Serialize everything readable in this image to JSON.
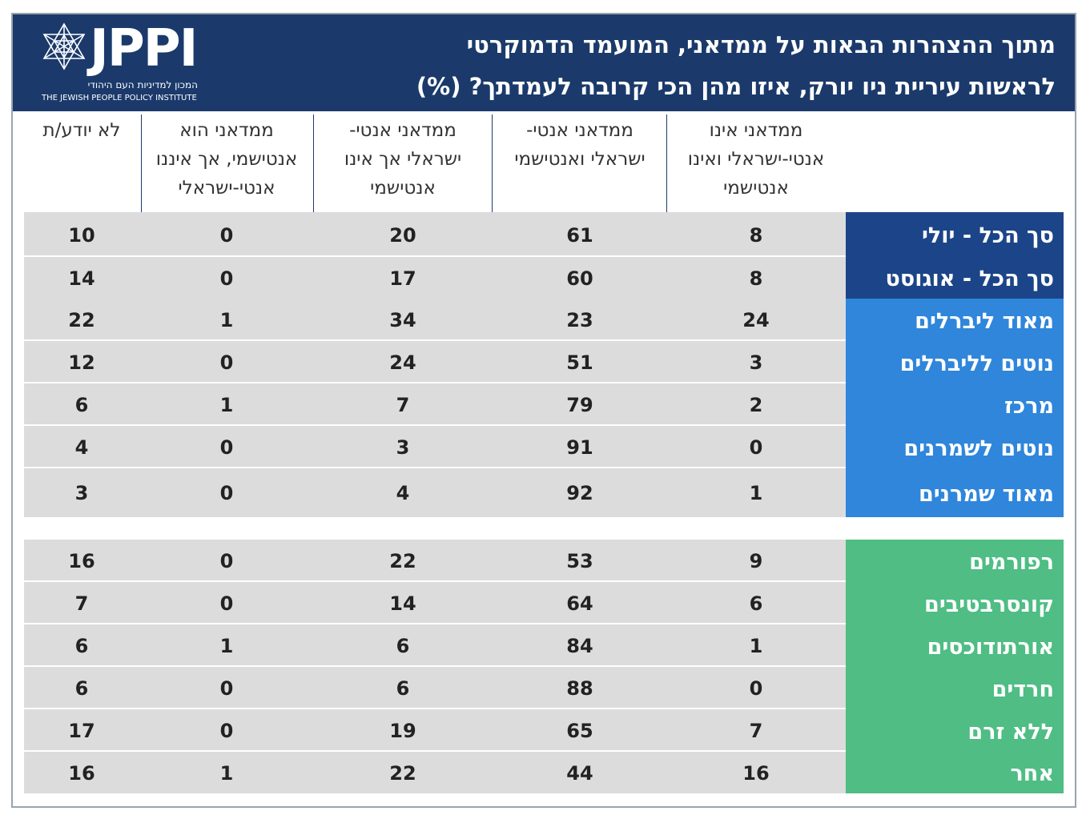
{
  "logo": {
    "name": "JPPI",
    "hebrew": "המכון למדיניות העם היהודי",
    "english": "THE JEWISH PEOPLE POLICY INSTITUTE"
  },
  "title": {
    "line1": "מתוך ההצהרות הבאות על ממדאני, המועמד הדמוקרטי",
    "line2": "לראשות עיריית ניו יורק, איזו מהן הכי קרובה לעמדתך? (%)"
  },
  "colors": {
    "header": "#1b3a6b",
    "total_rows": "#1c4589",
    "ideology_rows": "#2f86db",
    "denomination_rows": "#4fbd84",
    "band": "#dcdcdc"
  },
  "chart_data": {
    "type": "table",
    "unit": "%",
    "columns": [
      [
        "ממדאני אינו",
        "אנטי-ישראלי ואינו",
        "אנטישמי"
      ],
      [
        "ממדאני אנטי-",
        "ישראלי ואנטישמי"
      ],
      [
        "ממדאני אנטי-",
        "ישראלי אך אינו",
        "אנטישמי"
      ],
      [
        "ממדאני הוא",
        "אנטישמי, אך איננו",
        "אנטי-ישראלי"
      ],
      [
        "לא יודע/ת"
      ]
    ],
    "groups": [
      {
        "color": "#1c4589",
        "rows": [
          {
            "label": "סך הכל - יולי",
            "values": [
              8,
              61,
              20,
              0,
              10
            ]
          },
          {
            "label": "סך הכל - אוגוסט",
            "values": [
              8,
              60,
              17,
              0,
              14
            ]
          }
        ]
      },
      {
        "color": "#2f86db",
        "rows": [
          {
            "label": "מאוד ליברלים",
            "values": [
              24,
              23,
              34,
              1,
              22
            ]
          },
          {
            "label": "נוטים לליברלים",
            "values": [
              3,
              51,
              24,
              0,
              12
            ]
          },
          {
            "label": "מרכז",
            "values": [
              2,
              79,
              7,
              1,
              6
            ]
          },
          {
            "label": "נוטים לשמרנים",
            "values": [
              0,
              91,
              3,
              0,
              4
            ]
          },
          {
            "label": "מאוד שמרנים",
            "values": [
              1,
              92,
              4,
              0,
              3
            ]
          }
        ]
      },
      {
        "color": "#4fbd84",
        "rows": [
          {
            "label": "רפורמים",
            "values": [
              9,
              53,
              22,
              0,
              16
            ]
          },
          {
            "label": "קונסרבטיבים",
            "values": [
              6,
              64,
              14,
              0,
              7
            ]
          },
          {
            "label": "אורתודוכסים",
            "values": [
              1,
              84,
              6,
              1,
              6
            ]
          },
          {
            "label": "חרדים",
            "values": [
              0,
              88,
              6,
              0,
              6
            ]
          },
          {
            "label": "ללא זרם",
            "values": [
              7,
              65,
              19,
              0,
              17
            ]
          },
          {
            "label": "אחר",
            "values": [
              16,
              44,
              22,
              1,
              16
            ]
          }
        ]
      }
    ]
  }
}
